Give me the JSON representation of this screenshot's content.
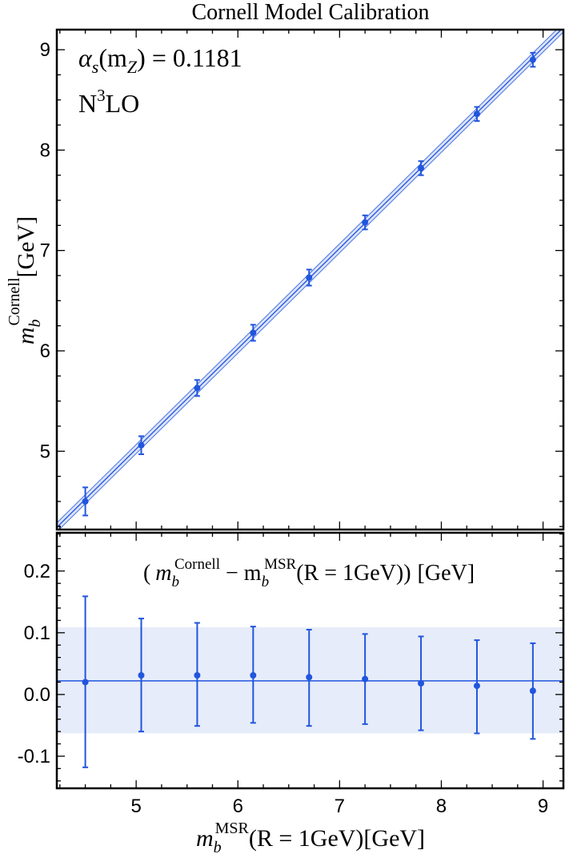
{
  "chart_data": [
    {
      "type": "scatter",
      "title": "Cornell Model Calibration",
      "ylabel_main": "m",
      "ylabel_sub": "b",
      "ylabel_sup": "Cornell",
      "ylabel_unit": "[GeV]",
      "annotations": {
        "alpha_label": "α",
        "alpha_sub": "s",
        "alpha_arg_open": "(m",
        "alpha_arg_sub": "Z",
        "alpha_rest": ") = 0.1181",
        "order_main": "N",
        "order_sup": "3",
        "order_rest": "LO"
      },
      "xlim": [
        4.22,
        9.2
      ],
      "ylim": [
        4.22,
        9.2
      ],
      "xticks": [
        5,
        6,
        7,
        8,
        9
      ],
      "yticks": [
        5,
        6,
        7,
        8,
        9
      ],
      "ytick_labels": [
        "5",
        "6",
        "7",
        "8",
        "9"
      ],
      "points": [
        {
          "x": 4.5,
          "y": 4.5,
          "err": 0.14
        },
        {
          "x": 5.05,
          "y": 5.06,
          "err": 0.09
        },
        {
          "x": 5.6,
          "y": 5.63,
          "err": 0.08
        },
        {
          "x": 6.15,
          "y": 6.18,
          "err": 0.08
        },
        {
          "x": 6.7,
          "y": 6.73,
          "err": 0.08
        },
        {
          "x": 7.25,
          "y": 7.28,
          "err": 0.07
        },
        {
          "x": 7.8,
          "y": 7.82,
          "err": 0.07
        },
        {
          "x": 8.35,
          "y": 8.36,
          "err": 0.07
        },
        {
          "x": 8.9,
          "y": 8.9,
          "err": 0.07
        }
      ],
      "fit_offset": 0.022,
      "band_halfwidth": 0.045,
      "colors": {
        "points": "#2255dd",
        "line": "#2255dd",
        "band": "#dbe3f7"
      }
    },
    {
      "type": "scatter",
      "label_main": "m",
      "label_sub": "b",
      "label_sup1": "Cornell",
      "label_minus": " − m",
      "label_sup2": "MSR",
      "label_tail": "(R = 1GeV)",
      "label_open": "(",
      "label_close": ")",
      "label_unit": "[GeV]",
      "xlabel_main": "m",
      "xlabel_sub": "b",
      "xlabel_sup": "MSR",
      "xlabel_tail": "(R = 1GeV)[GeV]",
      "xlim": [
        4.22,
        9.2
      ],
      "ylim": [
        -0.152,
        0.262
      ],
      "xticks": [
        5,
        6,
        7,
        8,
        9
      ],
      "xtick_labels": [
        "5",
        "6",
        "7",
        "8",
        "9"
      ],
      "yticks": [
        0.2,
        0.1,
        0.0,
        -0.1
      ],
      "ytick_labels": [
        "0.2",
        "0.1",
        "0.0",
        "-0.1"
      ],
      "points": [
        {
          "x": 4.5,
          "y": 0.02,
          "lo": -0.118,
          "hi": 0.159
        },
        {
          "x": 5.05,
          "y": 0.031,
          "lo": -0.06,
          "hi": 0.123
        },
        {
          "x": 5.6,
          "y": 0.031,
          "lo": -0.051,
          "hi": 0.116
        },
        {
          "x": 6.15,
          "y": 0.031,
          "lo": -0.046,
          "hi": 0.11
        },
        {
          "x": 6.7,
          "y": 0.028,
          "lo": -0.051,
          "hi": 0.105
        },
        {
          "x": 7.25,
          "y": 0.025,
          "lo": -0.048,
          "hi": 0.098
        },
        {
          "x": 7.8,
          "y": 0.018,
          "lo": -0.058,
          "hi": 0.094
        },
        {
          "x": 8.35,
          "y": 0.014,
          "lo": -0.063,
          "hi": 0.088
        },
        {
          "x": 8.9,
          "y": 0.006,
          "lo": -0.072,
          "hi": 0.083
        }
      ],
      "hline": 0.022,
      "band": [
        -0.063,
        0.109
      ],
      "colors": {
        "points": "#2255dd",
        "line": "#2255dd",
        "band": "#e6ecf9"
      }
    }
  ]
}
